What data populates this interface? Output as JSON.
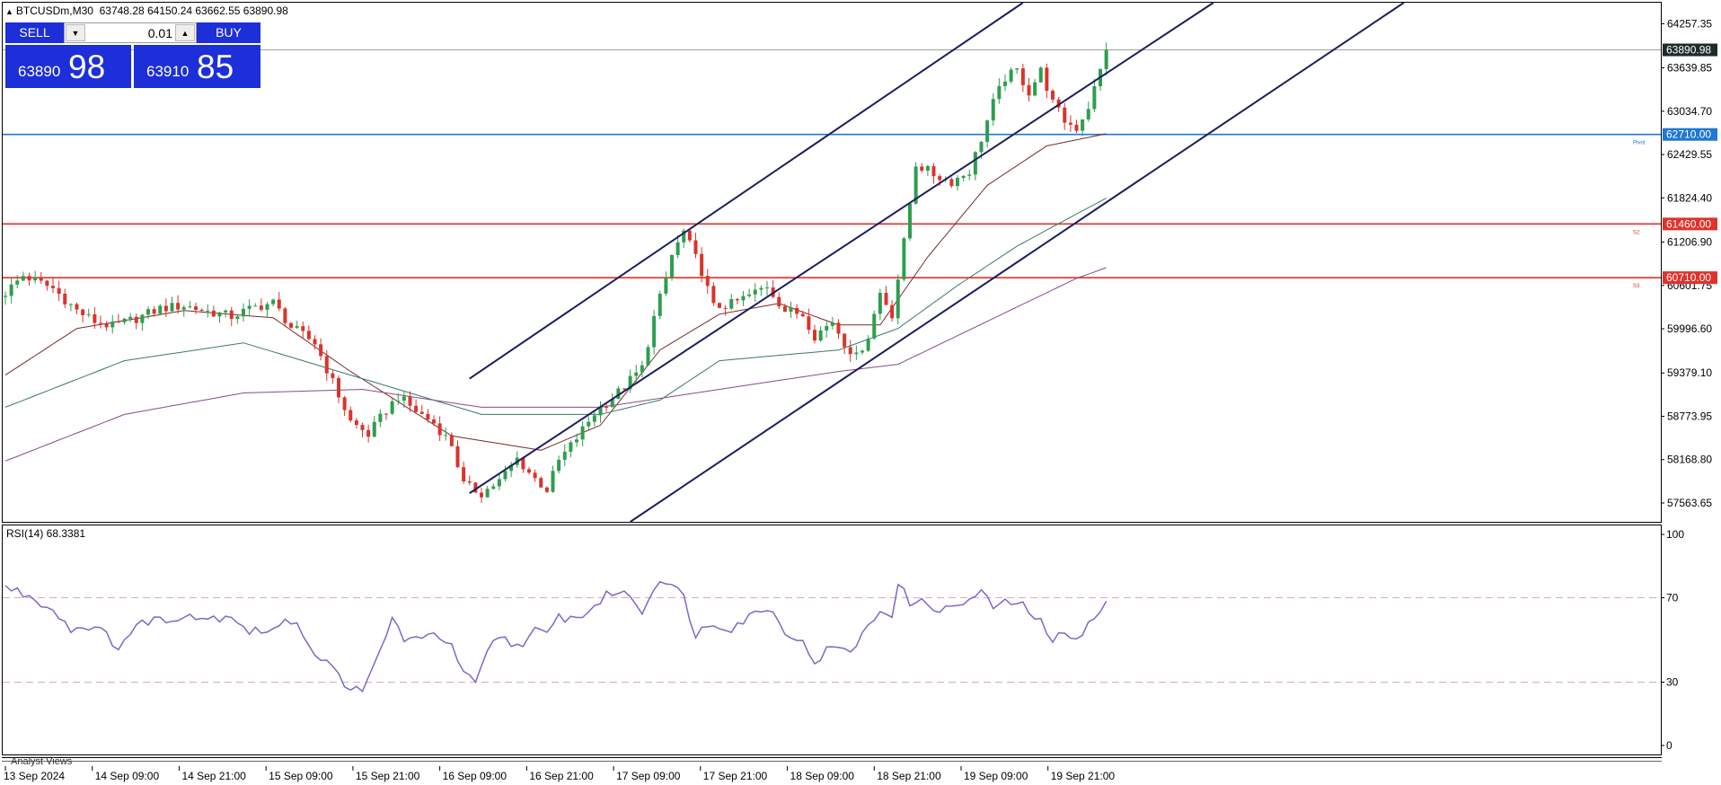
{
  "header": {
    "symbol": "BTCUSDm,M30",
    "ohlc": "63748.28 64150.24 63662.55 63890.98"
  },
  "trade_panel": {
    "sell_label": "SELL",
    "buy_label": "BUY",
    "lot": "0.01",
    "bid_small": "63890",
    "bid_big": "98",
    "ask_small": "63910",
    "ask_big": "85"
  },
  "price_labels": [
    "64257.35",
    "63639.85",
    "63034.70",
    "62429.55",
    "61824.40",
    "61206.90",
    "60601.75",
    "59996.60",
    "59379.10",
    "58773.95",
    "58168.80",
    "57563.65"
  ],
  "current_price": "63890.98",
  "levels": [
    {
      "value": 62710.0,
      "label": "62710.00",
      "tag": "Pivot",
      "color": "#1f78d1"
    },
    {
      "value": 61460.0,
      "label": "61460.00",
      "tag": "S2",
      "color": "#e0322b"
    },
    {
      "value": 60710.0,
      "label": "60710.00",
      "tag": "S3",
      "color": "#e0322b"
    }
  ],
  "rsi": {
    "title": "RSI(14) 68.3381",
    "labels": [
      "100",
      "70",
      "30",
      "0"
    ]
  },
  "time_labels": [
    "13 Sep 2024",
    "14 Sep 09:00",
    "14 Sep 21:00",
    "15 Sep 09:00",
    "15 Sep 21:00",
    "16 Sep 09:00",
    "16 Sep 21:00",
    "17 Sep 09:00",
    "17 Sep 21:00",
    "18 Sep 09:00",
    "18 Sep 21:00",
    "19 Sep 09:00",
    "19 Sep 21:00"
  ],
  "bottom_tab": "Analyst Views",
  "colors": {
    "bull": "#2e9e4f",
    "bear": "#d9342b",
    "rsi": "#7b68c9",
    "channel": "#1a1f5e"
  },
  "chart_data": {
    "type": "candlestick",
    "title": "BTCUSDm,M30",
    "ylim": [
      57300,
      64550
    ],
    "close_path": [
      [
        0,
        60500
      ],
      [
        3,
        60740
      ],
      [
        8,
        60560
      ],
      [
        12,
        60250
      ],
      [
        15,
        60100
      ],
      [
        18,
        60030
      ],
      [
        22,
        60140
      ],
      [
        26,
        60280
      ],
      [
        30,
        60320
      ],
      [
        34,
        60240
      ],
      [
        38,
        60170
      ],
      [
        42,
        60300
      ],
      [
        45,
        60360
      ],
      [
        48,
        60020
      ],
      [
        52,
        59800
      ],
      [
        55,
        59250
      ],
      [
        58,
        58700
      ],
      [
        61,
        58520
      ],
      [
        64,
        58860
      ],
      [
        66,
        59050
      ],
      [
        69,
        58850
      ],
      [
        72,
        58680
      ],
      [
        75,
        58380
      ],
      [
        77,
        57820
      ],
      [
        80,
        57700
      ],
      [
        83,
        57870
      ],
      [
        86,
        58180
      ],
      [
        89,
        57900
      ],
      [
        91,
        57750
      ],
      [
        93,
        58150
      ],
      [
        96,
        58470
      ],
      [
        99,
        58820
      ],
      [
        103,
        59110
      ],
      [
        107,
        59450
      ],
      [
        109,
        60150
      ],
      [
        111,
        60700
      ],
      [
        112,
        61020
      ],
      [
        114,
        61350
      ],
      [
        117,
        60800
      ],
      [
        119,
        60300
      ],
      [
        122,
        60340
      ],
      [
        125,
        60460
      ],
      [
        128,
        60600
      ],
      [
        131,
        60250
      ],
      [
        134,
        60200
      ],
      [
        136,
        59900
      ],
      [
        139,
        60100
      ],
      [
        141,
        59800
      ],
      [
        143,
        59600
      ],
      [
        145,
        59900
      ],
      [
        147,
        60500
      ],
      [
        149,
        60200
      ],
      [
        151,
        61200
      ],
      [
        153,
        62300
      ],
      [
        156,
        62150
      ],
      [
        159,
        62050
      ],
      [
        162,
        62200
      ],
      [
        164,
        62650
      ],
      [
        166,
        63150
      ],
      [
        168,
        63500
      ],
      [
        170,
        63600
      ],
      [
        172,
        63300
      ],
      [
        174,
        63600
      ],
      [
        176,
        63150
      ],
      [
        178,
        62900
      ],
      [
        180,
        62800
      ],
      [
        182,
        63100
      ],
      [
        184,
        63600
      ],
      [
        185,
        63890
      ]
    ],
    "ema_fast": [
      [
        0,
        59350
      ],
      [
        12,
        60000
      ],
      [
        30,
        60250
      ],
      [
        45,
        60150
      ],
      [
        58,
        59400
      ],
      [
        75,
        58500
      ],
      [
        90,
        58300
      ],
      [
        100,
        58650
      ],
      [
        110,
        59700
      ],
      [
        120,
        60200
      ],
      [
        130,
        60350
      ],
      [
        140,
        60050
      ],
      [
        147,
        60050
      ],
      [
        155,
        61000
      ],
      [
        165,
        62000
      ],
      [
        175,
        62550
      ],
      [
        185,
        62720
      ]
    ],
    "ema_mid": [
      [
        0,
        58900
      ],
      [
        20,
        59550
      ],
      [
        40,
        59800
      ],
      [
        60,
        59300
      ],
      [
        80,
        58800
      ],
      [
        100,
        58800
      ],
      [
        110,
        59000
      ],
      [
        120,
        59550
      ],
      [
        140,
        59700
      ],
      [
        150,
        60000
      ],
      [
        160,
        60600
      ],
      [
        170,
        61150
      ],
      [
        180,
        61600
      ],
      [
        185,
        61820
      ]
    ],
    "ema_slow": [
      [
        0,
        58150
      ],
      [
        20,
        58800
      ],
      [
        40,
        59100
      ],
      [
        60,
        59150
      ],
      [
        80,
        58900
      ],
      [
        100,
        58900
      ],
      [
        120,
        59150
      ],
      [
        140,
        59400
      ],
      [
        150,
        59500
      ],
      [
        160,
        59900
      ],
      [
        170,
        60300
      ],
      [
        180,
        60700
      ],
      [
        185,
        60850
      ]
    ],
    "channel_lines": [
      {
        "x": [
          78,
          171
        ],
        "y": [
          59300,
          64550
        ]
      },
      {
        "x": [
          78,
          203
        ],
        "y": [
          57700,
          64550
        ]
      },
      {
        "x": [
          105,
          235
        ],
        "y": [
          57300,
          64550
        ]
      }
    ],
    "rsi_values": [
      [
        0,
        75
      ],
      [
        3,
        72
      ],
      [
        6,
        68
      ],
      [
        9,
        62
      ],
      [
        11,
        55
      ],
      [
        14,
        57
      ],
      [
        17,
        52
      ],
      [
        19,
        47
      ],
      [
        22,
        56
      ],
      [
        25,
        61
      ],
      [
        27,
        58
      ],
      [
        30,
        63
      ],
      [
        34,
        60
      ],
      [
        38,
        62
      ],
      [
        41,
        54
      ],
      [
        45,
        55
      ],
      [
        49,
        60
      ],
      [
        51,
        47
      ],
      [
        54,
        39
      ],
      [
        57,
        30
      ],
      [
        60,
        24
      ],
      [
        62,
        38
      ],
      [
        65,
        60
      ],
      [
        67,
        51
      ],
      [
        70,
        49
      ],
      [
        72,
        55
      ],
      [
        75,
        46
      ],
      [
        77,
        35
      ],
      [
        79,
        28
      ],
      [
        81,
        44
      ],
      [
        83,
        52
      ],
      [
        86,
        47
      ],
      [
        89,
        54
      ],
      [
        91,
        52
      ],
      [
        93,
        61
      ],
      [
        96,
        60
      ],
      [
        99,
        66
      ],
      [
        102,
        73
      ],
      [
        105,
        71
      ],
      [
        107,
        64
      ],
      [
        109,
        74
      ],
      [
        110,
        80
      ],
      [
        112,
        76
      ],
      [
        114,
        70
      ],
      [
        116,
        53
      ],
      [
        119,
        58
      ],
      [
        122,
        56
      ],
      [
        125,
        61
      ],
      [
        128,
        66
      ],
      [
        131,
        55
      ],
      [
        134,
        48
      ],
      [
        136,
        40
      ],
      [
        139,
        47
      ],
      [
        141,
        44
      ],
      [
        143,
        48
      ],
      [
        145,
        56
      ],
      [
        147,
        64
      ],
      [
        149,
        63
      ],
      [
        150,
        76
      ],
      [
        152,
        68
      ],
      [
        155,
        67
      ],
      [
        158,
        64
      ],
      [
        162,
        69
      ],
      [
        164,
        72
      ],
      [
        166,
        66
      ],
      [
        168,
        67
      ],
      [
        170,
        68
      ],
      [
        172,
        64
      ],
      [
        174,
        58
      ],
      [
        176,
        48
      ],
      [
        178,
        55
      ],
      [
        180,
        51
      ],
      [
        182,
        57
      ],
      [
        184,
        63
      ],
      [
        185,
        68.34
      ]
    ],
    "rsi_ylim": [
      0,
      100
    ]
  }
}
